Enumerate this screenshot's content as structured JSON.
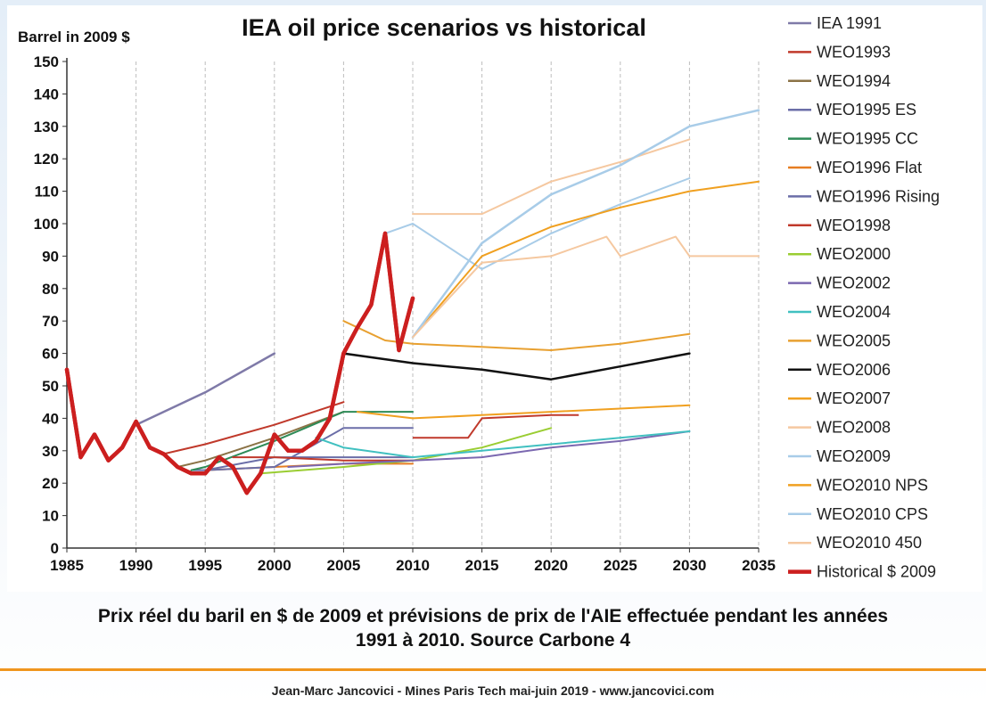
{
  "caption": {
    "line1": "Prix réel du baril en $ de 2009 et prévisions de prix de l'AIE effectuée pendant les années",
    "line2": "1991 à 2010. Source Carbone 4"
  },
  "footer": {
    "text": "Jean-Marc Jancovici - Mines Paris Tech mai-juin 2019 - www.jancovici.com"
  },
  "chart_data": {
    "type": "line",
    "title": "IEA oil price scenarios vs historical",
    "ylabel": "Barrel in 2009 $",
    "xlabel": "",
    "xlim": [
      1985,
      2035
    ],
    "ylim": [
      0,
      150
    ],
    "xticks": [
      1985,
      1990,
      1995,
      2000,
      2005,
      2010,
      2015,
      2020,
      2025,
      2030,
      2035
    ],
    "yticks": [
      0,
      10,
      20,
      30,
      40,
      50,
      60,
      70,
      80,
      90,
      100,
      110,
      120,
      130,
      140,
      150
    ],
    "grid": "vertical dashed",
    "legend_position": "right",
    "series": [
      {
        "name": "IEA 1991",
        "color": "#7f7aa8",
        "width": 2.5,
        "points": [
          [
            1990,
            38
          ],
          [
            1995,
            48
          ],
          [
            2000,
            60
          ]
        ]
      },
      {
        "name": "WEO1993",
        "color": "#c0392b",
        "width": 2,
        "points": [
          [
            1992,
            29
          ],
          [
            1995,
            32
          ],
          [
            2000,
            38
          ],
          [
            2005,
            45
          ]
        ]
      },
      {
        "name": "WEO1994",
        "color": "#8b7346",
        "width": 2,
        "points": [
          [
            1993,
            25
          ],
          [
            1995,
            27
          ],
          [
            2000,
            34
          ],
          [
            2005,
            42
          ]
        ]
      },
      {
        "name": "WEO1995 ES",
        "color": "#6b6ea8",
        "width": 2,
        "points": [
          [
            1994,
            24
          ],
          [
            1995,
            24
          ],
          [
            2000,
            28
          ],
          [
            2005,
            28
          ],
          [
            2010,
            28
          ]
        ]
      },
      {
        "name": "WEO1995 CC",
        "color": "#2e8b57",
        "width": 2,
        "points": [
          [
            1994,
            24
          ],
          [
            1995,
            25
          ],
          [
            2000,
            33
          ],
          [
            2005,
            42
          ],
          [
            2010,
            42
          ]
        ]
      },
      {
        "name": "WEO1996 Flat",
        "color": "#e67e22",
        "width": 2,
        "points": [
          [
            1995,
            24
          ],
          [
            2000,
            25
          ],
          [
            2005,
            26
          ],
          [
            2010,
            26
          ]
        ]
      },
      {
        "name": "WEO1996 Rising",
        "color": "#6b6ea8",
        "width": 2,
        "points": [
          [
            1995,
            24
          ],
          [
            2000,
            25
          ],
          [
            2005,
            37
          ],
          [
            2010,
            37
          ]
        ]
      },
      {
        "name": "WEO1998",
        "color": "#c0392b",
        "width": 2,
        "points": [
          [
            1997,
            28
          ],
          [
            2000,
            28
          ],
          [
            2005,
            27
          ],
          [
            2010,
            27
          ]
        ]
      },
      {
        "name": "WEO2000",
        "color": "#9acd32",
        "width": 2,
        "points": [
          [
            1999,
            23
          ],
          [
            2005,
            25
          ],
          [
            2010,
            27
          ],
          [
            2015,
            31
          ],
          [
            2020,
            37
          ]
        ]
      },
      {
        "name": "WEO2002",
        "color": "#7b68b0",
        "width": 2,
        "points": [
          [
            2001,
            25
          ],
          [
            2005,
            26
          ],
          [
            2010,
            27
          ],
          [
            2015,
            28
          ],
          [
            2020,
            31
          ],
          [
            2025,
            33
          ],
          [
            2030,
            36
          ]
        ]
      },
      {
        "name": "WEO2004",
        "color": "#40c0c0",
        "width": 2,
        "points": [
          [
            2003,
            34
          ],
          [
            2005,
            31
          ],
          [
            2010,
            28
          ],
          [
            2015,
            30
          ],
          [
            2020,
            32
          ],
          [
            2025,
            34
          ],
          [
            2030,
            36
          ]
        ]
      },
      {
        "name": "WEO2005",
        "color": "#e8a030",
        "width": 2,
        "points": [
          [
            2005,
            70
          ],
          [
            2008,
            64
          ],
          [
            2010,
            63
          ],
          [
            2015,
            62
          ],
          [
            2020,
            61
          ],
          [
            2025,
            63
          ],
          [
            2030,
            66
          ]
        ]
      },
      {
        "name": "WEO2006",
        "color": "#111111",
        "width": 2.5,
        "points": [
          [
            2005,
            60
          ],
          [
            2010,
            57
          ],
          [
            2015,
            55
          ],
          [
            2020,
            52
          ],
          [
            2025,
            56
          ],
          [
            2030,
            60
          ]
        ]
      },
      {
        "name": "WEO2007",
        "color": "#f0a020",
        "width": 2,
        "points": [
          [
            2006,
            42
          ],
          [
            2010,
            40
          ],
          [
            2015,
            41
          ],
          [
            2020,
            42
          ],
          [
            2025,
            43
          ],
          [
            2030,
            44
          ]
        ]
      },
      {
        "name": "WEO2008",
        "color": "#f5c8a0",
        "width": 2,
        "points": [
          [
            2010,
            103
          ],
          [
            2015,
            103
          ],
          [
            2020,
            113
          ],
          [
            2025,
            119
          ],
          [
            2030,
            126
          ]
        ]
      },
      {
        "name": "WEO2009",
        "color": "#a8cce8",
        "width": 2,
        "points": [
          [
            2008,
            97
          ],
          [
            2010,
            100
          ],
          [
            2015,
            86
          ],
          [
            2020,
            97
          ],
          [
            2025,
            106
          ],
          [
            2030,
            114
          ]
        ]
      },
      {
        "name": "WEO2010 NPS",
        "color": "#f0a020",
        "width": 2,
        "points": [
          [
            2010,
            65
          ],
          [
            2015,
            90
          ],
          [
            2020,
            99
          ],
          [
            2025,
            105
          ],
          [
            2030,
            110
          ],
          [
            2035,
            113
          ]
        ]
      },
      {
        "name": "WEO2010 CPS",
        "color": "#a8cce8",
        "width": 2.5,
        "points": [
          [
            2010,
            65
          ],
          [
            2015,
            94
          ],
          [
            2020,
            109
          ],
          [
            2025,
            118
          ],
          [
            2030,
            130
          ],
          [
            2035,
            135
          ]
        ]
      },
      {
        "name": "WEO2010 450",
        "color": "#f5c8a0",
        "width": 2,
        "points": [
          [
            2010,
            65
          ],
          [
            2015,
            88
          ],
          [
            2020,
            90
          ],
          [
            2024,
            96
          ],
          [
            2025,
            90
          ],
          [
            2029,
            96
          ],
          [
            2030,
            90
          ],
          [
            2035,
            90
          ]
        ]
      },
      {
        "name": "Historical $ 2009",
        "color": "#cc1f1f",
        "width": 4.5,
        "points": [
          [
            1985,
            55
          ],
          [
            1986,
            28
          ],
          [
            1987,
            35
          ],
          [
            1988,
            27
          ],
          [
            1989,
            31
          ],
          [
            1990,
            39
          ],
          [
            1991,
            31
          ],
          [
            1992,
            29
          ],
          [
            1993,
            25
          ],
          [
            1994,
            23
          ],
          [
            1995,
            23
          ],
          [
            1996,
            28
          ],
          [
            1997,
            25
          ],
          [
            1998,
            17
          ],
          [
            1999,
            23
          ],
          [
            2000,
            35
          ],
          [
            2001,
            30
          ],
          [
            2002,
            30
          ],
          [
            2003,
            33
          ],
          [
            2004,
            40
          ],
          [
            2005,
            60
          ],
          [
            2006,
            68
          ],
          [
            2007,
            75
          ],
          [
            2008,
            97
          ],
          [
            2009,
            61
          ],
          [
            2010,
            77
          ]
        ]
      }
    ],
    "extra_segments": [
      {
        "series": "WEO1998",
        "points": [
          [
            2010,
            34
          ],
          [
            2014,
            34
          ],
          [
            2015,
            40
          ],
          [
            2020,
            41
          ],
          [
            2022,
            41
          ]
        ]
      }
    ]
  }
}
